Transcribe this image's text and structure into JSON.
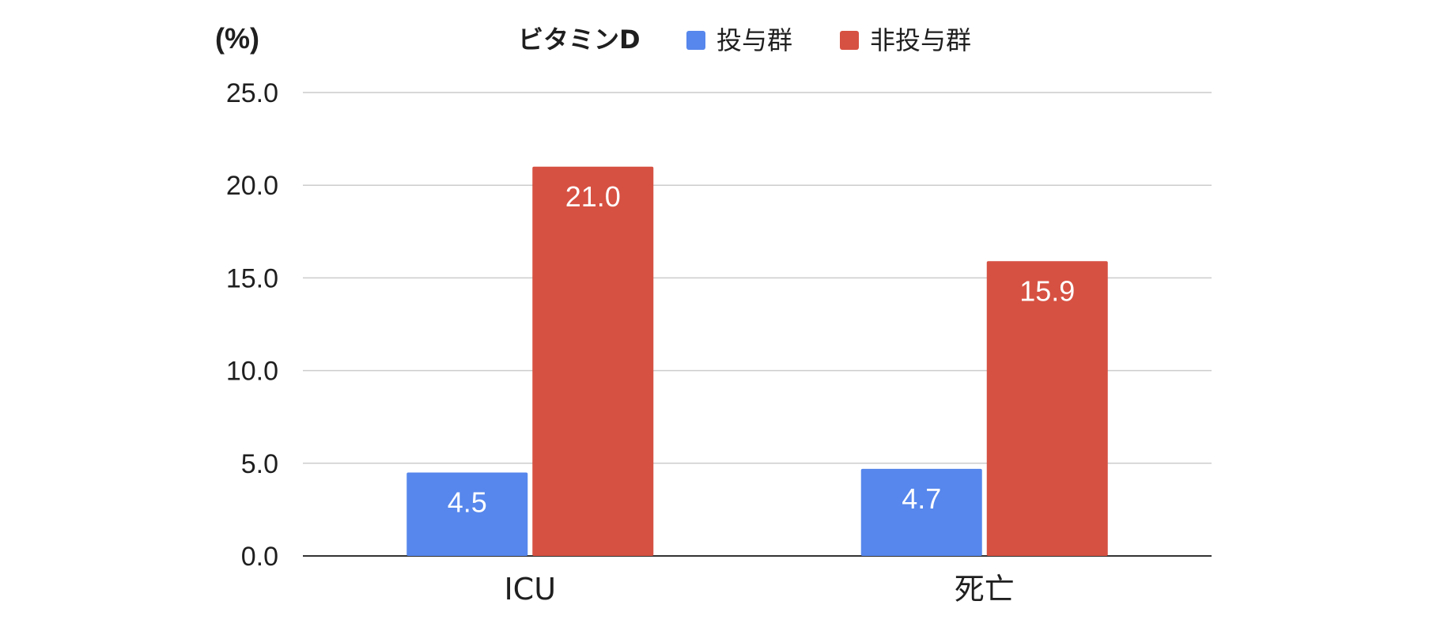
{
  "chart_data": {
    "type": "bar",
    "unit_label": "(%)",
    "categories": [
      "ICU",
      "死亡"
    ],
    "legend": {
      "title": "ビタミンD",
      "position": "top"
    },
    "series": [
      {
        "name": "投与群",
        "color": "#5787ec",
        "values": [
          4.5,
          4.7
        ]
      },
      {
        "name": "非投与群",
        "color": "#d65142",
        "values": [
          21.0,
          15.9
        ]
      }
    ],
    "ylim": [
      0,
      25
    ],
    "yticks": [
      "0.0",
      "5.0",
      "10.0",
      "15.0",
      "20.0",
      "25.0"
    ],
    "grid": true,
    "data_labels": true
  }
}
